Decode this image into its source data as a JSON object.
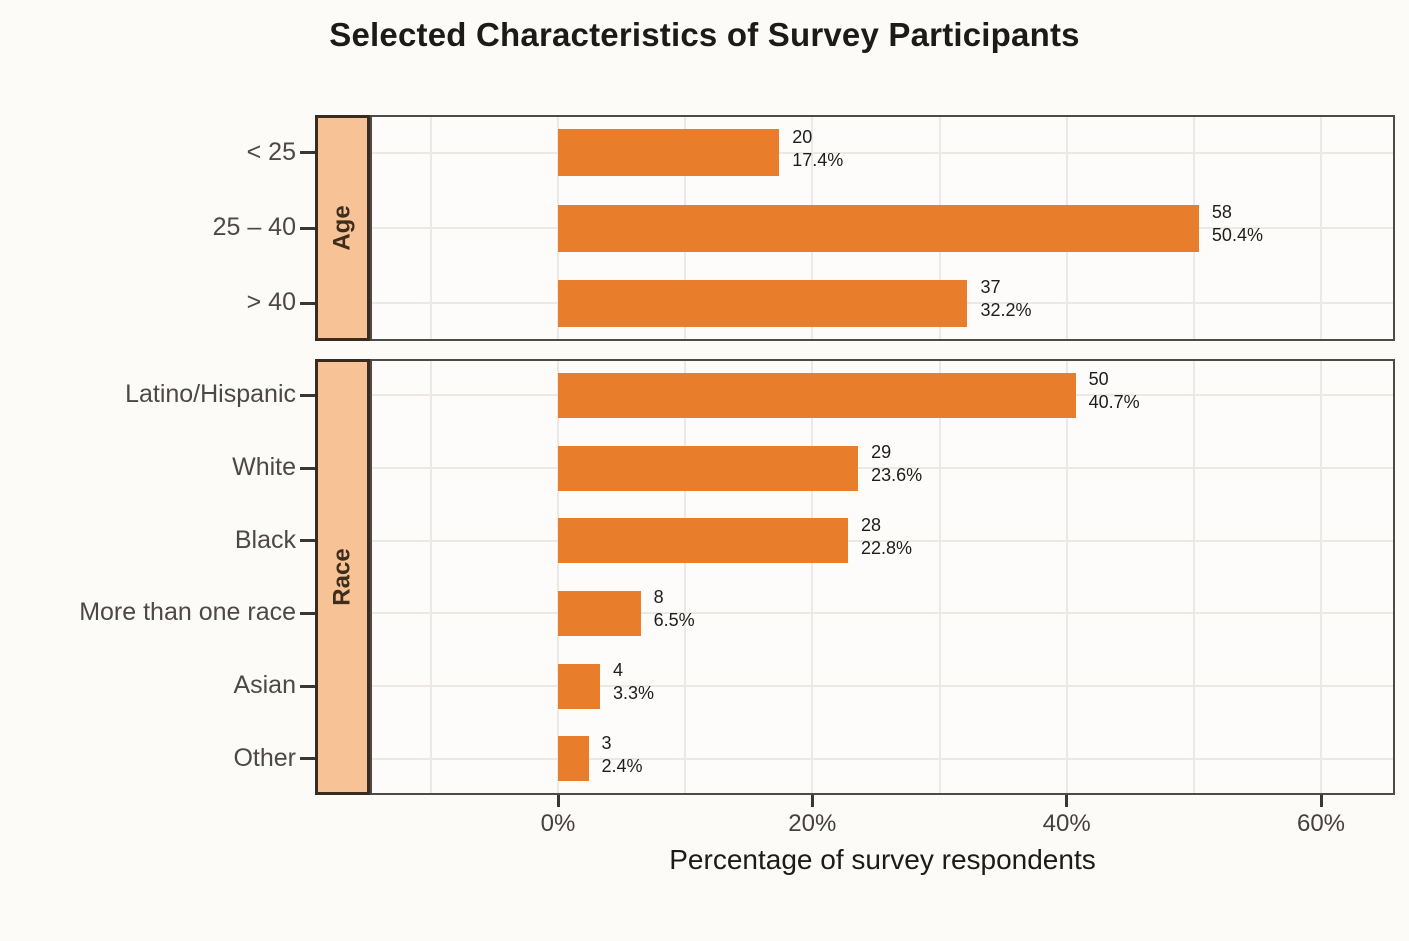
{
  "title": "Selected Characteristics of Survey Participants",
  "chart_data": {
    "type": "bar",
    "orientation": "horizontal",
    "title": "Selected Characteristics of Survey Participants",
    "xlabel": "Percentage of survey respondents",
    "x_range": [
      -15,
      66
    ],
    "grid": {
      "vertical_step_pct": 10,
      "horizontal": "category-centers"
    },
    "x_ticks": [
      {
        "label": "0%",
        "value": 0
      },
      {
        "label": "20%",
        "value": 20
      },
      {
        "label": "40%",
        "value": 40
      },
      {
        "label": "60%",
        "value": 60
      }
    ],
    "facets": [
      {
        "name": "Age",
        "rows": [
          {
            "category": "< 25",
            "count": "20",
            "percent": "17.4%",
            "value": 17.4
          },
          {
            "category": "25 – 40",
            "count": "58",
            "percent": "50.4%",
            "value": 50.4
          },
          {
            "category": "> 40",
            "count": "37",
            "percent": "32.2%",
            "value": 32.2
          }
        ]
      },
      {
        "name": "Race",
        "rows": [
          {
            "category": "Latino/Hispanic",
            "count": "50",
            "percent": "40.7%",
            "value": 40.7
          },
          {
            "category": "White",
            "count": "29",
            "percent": "23.6%",
            "value": 23.6
          },
          {
            "category": "Black",
            "count": "28",
            "percent": "22.8%",
            "value": 22.8
          },
          {
            "category": "More than one race",
            "count": "8",
            "percent": "6.5%",
            "value": 6.5
          },
          {
            "category": "Asian",
            "count": "4",
            "percent": "3.3%",
            "value": 3.3
          },
          {
            "category": "Other",
            "count": "3",
            "percent": "2.4%",
            "value": 2.4
          }
        ]
      }
    ],
    "colors": {
      "bar": "#E87E2C",
      "strip_fill": "#F7C296",
      "strip_border": "#382B20",
      "panel_border": "#4D4B49",
      "gridline": "#ECE9E4",
      "background": "#FDFBF8",
      "title_text": "#1D1B19",
      "category_text": "#4C4845",
      "axis_tick_text": "#45413E",
      "value_label_text": "#1F1D1B"
    }
  }
}
